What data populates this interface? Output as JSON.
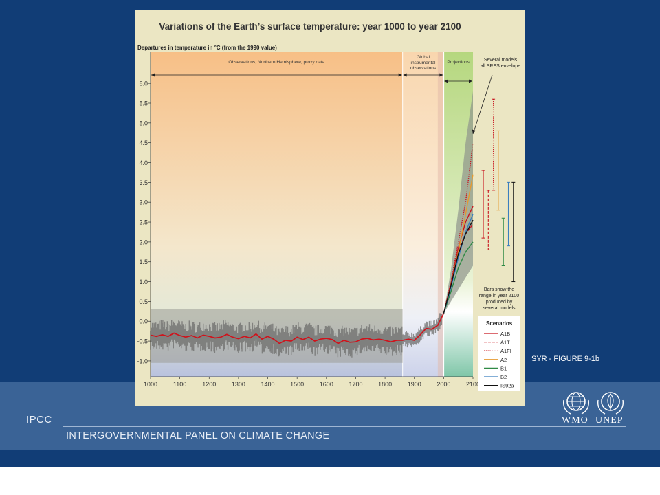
{
  "slide": {
    "ipcc_label": "IPCC",
    "panel_name": "INTERGOVERNMENTAL PANEL ON CLIMATE CHANGE",
    "figure_label": "SYR - FIGURE 9-1b",
    "logos": {
      "wmo": "WMO",
      "unep": "UNEP"
    },
    "colors": {
      "background": "#113d76",
      "band": "#3a6396"
    }
  },
  "chart_data": {
    "type": "line",
    "title": "Variations of the Earth’s surface temperature: year 1000 to year 2100",
    "ylabel": "Departures in temperature in °C (from the 1990 value)",
    "xlim": [
      1000,
      2100
    ],
    "ylim": [
      -1.4,
      6.8
    ],
    "xticks": [
      1000,
      1100,
      1200,
      1300,
      1400,
      1500,
      1600,
      1700,
      1800,
      1900,
      2000,
      2100
    ],
    "yticks": [
      "-1.0",
      "-0.5",
      "0.0",
      "0.5",
      "1.0",
      "1.5",
      "2.0",
      "2.5",
      "3.0",
      "3.5",
      "4.0",
      "4.5",
      "5.0",
      "5.5",
      "6.0"
    ],
    "periods": [
      {
        "label": "Observations, Northern Hemisphere, proxy data",
        "start": 1000,
        "end": 1860
      },
      {
        "label": "Global instrumental observations",
        "start": 1860,
        "end": 2000
      },
      {
        "label": "Projections",
        "start": 2000,
        "end": 2100
      }
    ],
    "annotations": {
      "envelope": "Several models all SRES envelope",
      "bars_note": "Bars show the range in year 2100 produced by several models"
    },
    "observed": {
      "x": [
        1000,
        1020,
        1040,
        1060,
        1080,
        1100,
        1120,
        1140,
        1160,
        1180,
        1200,
        1220,
        1240,
        1260,
        1280,
        1300,
        1320,
        1340,
        1360,
        1380,
        1400,
        1420,
        1440,
        1460,
        1480,
        1500,
        1520,
        1540,
        1560,
        1580,
        1600,
        1620,
        1640,
        1660,
        1680,
        1700,
        1720,
        1740,
        1760,
        1780,
        1800,
        1820,
        1840,
        1860,
        1880,
        1900,
        1920,
        1940,
        1960,
        1980,
        2000
      ],
      "y": [
        -0.35,
        -0.38,
        -0.34,
        -0.38,
        -0.3,
        -0.36,
        -0.4,
        -0.36,
        -0.42,
        -0.35,
        -0.38,
        -0.42,
        -0.4,
        -0.33,
        -0.4,
        -0.44,
        -0.38,
        -0.42,
        -0.32,
        -0.45,
        -0.38,
        -0.45,
        -0.56,
        -0.48,
        -0.5,
        -0.4,
        -0.46,
        -0.4,
        -0.5,
        -0.45,
        -0.43,
        -0.46,
        -0.56,
        -0.48,
        -0.53,
        -0.52,
        -0.45,
        -0.43,
        -0.47,
        -0.45,
        -0.48,
        -0.52,
        -0.48,
        -0.48,
        -0.45,
        -0.48,
        -0.34,
        -0.18,
        -0.2,
        -0.1,
        0.2
      ]
    },
    "uncertainty_band": {
      "x": [
        1000,
        1860
      ],
      "y_low": -1.05,
      "y_high": 0.3
    },
    "sres_envelope": {
      "x": [
        2000,
        2025,
        2050,
        2075,
        2100
      ],
      "y_low": [
        0.2,
        0.5,
        0.8,
        1.1,
        1.4
      ],
      "y_high": [
        0.2,
        1.3,
        2.8,
        4.5,
        5.8
      ]
    },
    "series": [
      {
        "name": "A1B",
        "color": "#c8141e",
        "dash": "solid",
        "x": [
          2000,
          2025,
          2050,
          2075,
          2100
        ],
        "y": [
          0.2,
          0.95,
          1.85,
          2.5,
          2.9
        ]
      },
      {
        "name": "A1T",
        "color": "#c8141e",
        "dash": "dash",
        "x": [
          2000,
          2025,
          2050,
          2075,
          2100
        ],
        "y": [
          0.2,
          0.95,
          1.8,
          2.2,
          2.45
        ]
      },
      {
        "name": "A1FI",
        "color": "#c8141e",
        "dash": "dot",
        "x": [
          2000,
          2025,
          2050,
          2075,
          2100
        ],
        "y": [
          0.2,
          1.0,
          2.0,
          3.0,
          4.5
        ]
      },
      {
        "name": "A2",
        "color": "#e69a30",
        "dash": "solid",
        "x": [
          2000,
          2025,
          2050,
          2075,
          2100
        ],
        "y": [
          0.2,
          0.9,
          1.75,
          2.7,
          3.7
        ]
      },
      {
        "name": "B1",
        "color": "#2f8a45",
        "dash": "solid",
        "x": [
          2000,
          2025,
          2050,
          2075,
          2100
        ],
        "y": [
          0.2,
          0.75,
          1.35,
          1.75,
          2.0
        ]
      },
      {
        "name": "B2",
        "color": "#3b7fbf",
        "dash": "solid",
        "x": [
          2000,
          2025,
          2050,
          2075,
          2100
        ],
        "y": [
          0.2,
          0.85,
          1.6,
          2.25,
          2.7
        ]
      },
      {
        "name": "IS92a",
        "color": "#111111",
        "dash": "solid",
        "x": [
          2000,
          2025,
          2050,
          2075,
          2100
        ],
        "y": [
          0.2,
          0.9,
          1.7,
          2.2,
          2.55
        ]
      }
    ],
    "legend": {
      "title": "Scenarios",
      "items": [
        {
          "name": "A1B",
          "color": "#c8141e",
          "dash": "solid"
        },
        {
          "name": "A1T",
          "color": "#c8141e",
          "dash": "dash"
        },
        {
          "name": "A1FI",
          "color": "#c8141e",
          "dash": "dot"
        },
        {
          "name": "A2",
          "color": "#e69a30",
          "dash": "solid"
        },
        {
          "name": "B1",
          "color": "#2f8a45",
          "dash": "solid"
        },
        {
          "name": "B2",
          "color": "#3b7fbf",
          "dash": "solid"
        },
        {
          "name": "IS92a",
          "color": "#111111",
          "dash": "solid"
        }
      ]
    },
    "range_bars_2100": [
      {
        "name": "A1B",
        "color": "#c8141e",
        "dash": "solid",
        "low": 2.1,
        "high": 3.8
      },
      {
        "name": "A1T",
        "color": "#c8141e",
        "dash": "dash",
        "low": 1.8,
        "high": 3.3
      },
      {
        "name": "A1FI",
        "color": "#c8141e",
        "dash": "dot",
        "low": 3.3,
        "high": 5.6
      },
      {
        "name": "A2",
        "color": "#e69a30",
        "dash": "solid",
        "low": 2.8,
        "high": 4.8
      },
      {
        "name": "B1",
        "color": "#2f8a45",
        "dash": "solid",
        "low": 1.4,
        "high": 2.6
      },
      {
        "name": "B2",
        "color": "#3b7fbf",
        "dash": "solid",
        "low": 1.9,
        "high": 3.5
      },
      {
        "name": "IS92a",
        "color": "#111111",
        "dash": "solid",
        "low": 1.0,
        "high": 3.5
      }
    ]
  }
}
